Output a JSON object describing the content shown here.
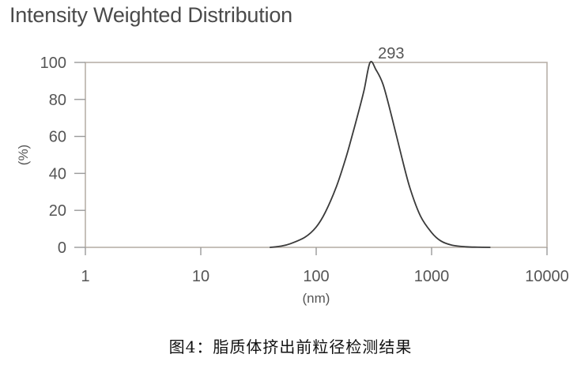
{
  "chart_data": {
    "type": "line",
    "title": "Intensity Weighted Distribution",
    "xlabel": "(nm)",
    "ylabel": "(%)",
    "x_scale": "log",
    "xlim": [
      1,
      10000
    ],
    "ylim": [
      0,
      100
    ],
    "x_ticks": [
      "1",
      "10",
      "100",
      "1000",
      "10000"
    ],
    "y_ticks": [
      "0",
      "20",
      "40",
      "60",
      "80",
      "100"
    ],
    "grid": false,
    "series": [
      {
        "x": [
          40,
          50,
          60,
          80,
          100,
          120,
          150,
          180,
          200,
          230,
          260,
          293,
          330,
          380,
          450,
          550,
          650,
          800,
          1000,
          1200,
          1500,
          2000,
          2500,
          3200
        ],
        "y": [
          0,
          0.7,
          2,
          5.5,
          11,
          19,
          33,
          48,
          58,
          72,
          85,
          100,
          96,
          88,
          71,
          49,
          32,
          17,
          8,
          3.5,
          1.2,
          0.3,
          0.1,
          0
        ],
        "color": "#3a3a3a"
      }
    ],
    "annotations": [
      {
        "text": "293",
        "x": 293,
        "y": 100,
        "color": "#c0392b"
      }
    ]
  },
  "caption": "图4：脂质体挤出前粒径检测结果"
}
